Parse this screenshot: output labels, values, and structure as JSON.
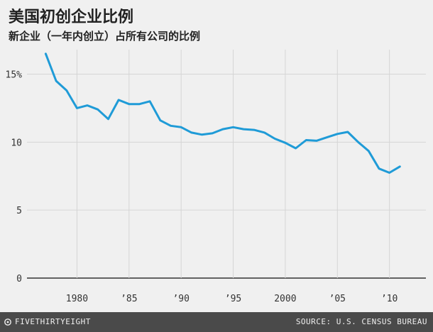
{
  "chart_data": {
    "type": "line",
    "title": "美国初创企业比例",
    "subtitle": "新企业（一年内创立）占所有公司的比例",
    "xlabel": "",
    "ylabel": "",
    "x": [
      1977,
      1978,
      1979,
      1980,
      1981,
      1982,
      1983,
      1984,
      1985,
      1986,
      1987,
      1988,
      1989,
      1990,
      1991,
      1992,
      1993,
      1994,
      1995,
      1996,
      1997,
      1998,
      1999,
      2000,
      2001,
      2002,
      2003,
      2004,
      2005,
      2006,
      2007,
      2008,
      2009,
      2010,
      2011
    ],
    "series": [
      {
        "values": [
          16.5,
          14.5,
          13.8,
          12.5,
          12.7,
          12.4,
          11.7,
          13.1,
          12.8,
          12.8,
          13.0,
          11.6,
          11.2,
          11.1,
          10.7,
          10.55,
          10.65,
          10.95,
          11.1,
          10.95,
          10.9,
          10.7,
          10.25,
          9.95,
          9.55,
          10.15,
          10.1,
          10.35,
          10.6,
          10.75,
          10.0,
          9.35,
          8.05,
          7.75,
          8.2
        ],
        "color": "#1f9bd7"
      }
    ],
    "xlim": [
      1975.2,
      2013.5
    ],
    "ylim": [
      0,
      16.8
    ],
    "y_ticks": [
      0,
      5,
      10,
      15
    ],
    "y_tick_labels": [
      "0",
      "5",
      "10",
      "15%"
    ],
    "x_ticks": [
      1980,
      1985,
      1990,
      1995,
      2000,
      2005,
      2010
    ],
    "x_tick_labels": [
      "1980",
      "’85",
      "’90",
      "’95",
      "2000",
      "’05",
      "’10"
    ],
    "grid": true,
    "legend": "none"
  },
  "footer": {
    "brand": "FIVETHIRTYEIGHT",
    "source": "SOURCE: U.S. CENSUS BUREAU"
  },
  "colors": {
    "background": "#f0f0f0",
    "grid": "#d5d5d5",
    "baseline": "#333333",
    "line": "#1f9bd7",
    "footer": "#4a4a4a"
  }
}
